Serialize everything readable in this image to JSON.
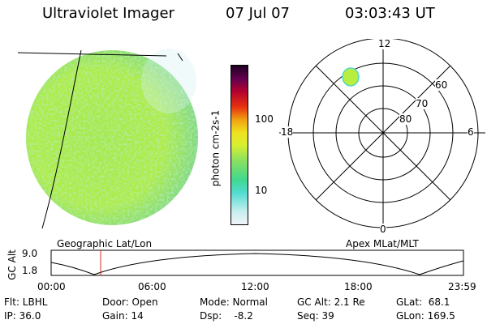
{
  "header": {
    "instrument": "Ultraviolet Imager",
    "date": "07 Jul 07",
    "time": "03:03:43 UT"
  },
  "colorbar": {
    "unit_label": "photon cm-2s-1",
    "ticks": [
      "100",
      "10"
    ]
  },
  "polar_plot": {
    "mlt_labels": [
      "12",
      "18",
      "6",
      "0"
    ],
    "lat_labels": [
      "60",
      "70",
      "80"
    ]
  },
  "panel_labels": {
    "left": "Geographic Lat/Lon",
    "right": "Apex MLat/MLT"
  },
  "altitude_plot": {
    "ylabel": "GC Alt",
    "yticks": [
      "9.0",
      "1.8"
    ],
    "xticks": [
      "00:00",
      "06:00",
      "12:00",
      "18:00",
      "23:59"
    ]
  },
  "info": {
    "row1": {
      "flt": "Flt: LBHL",
      "door": "Door: Open",
      "mode": "Mode: Normal",
      "gcalt": "GC Alt: 2.1 Re",
      "glat": "GLat:  68.1"
    },
    "row2": {
      "ip": "IP: 36.0",
      "gain": "Gain: 14",
      "dsp": "Dsp:    -8.2",
      "seq": "Seq: 39",
      "glon": "GLon: 169.5"
    }
  },
  "colors": {
    "colorbar": [
      "#e8eef0",
      "#a8e4e8",
      "#30d8c8",
      "#7ae070",
      "#c8f040",
      "#f0f020",
      "#f0a010",
      "#e02010",
      "#a00040",
      "#600060",
      "#200030"
    ],
    "earth_main": "#a8e64a",
    "current_time_marker": "#d03020"
  }
}
